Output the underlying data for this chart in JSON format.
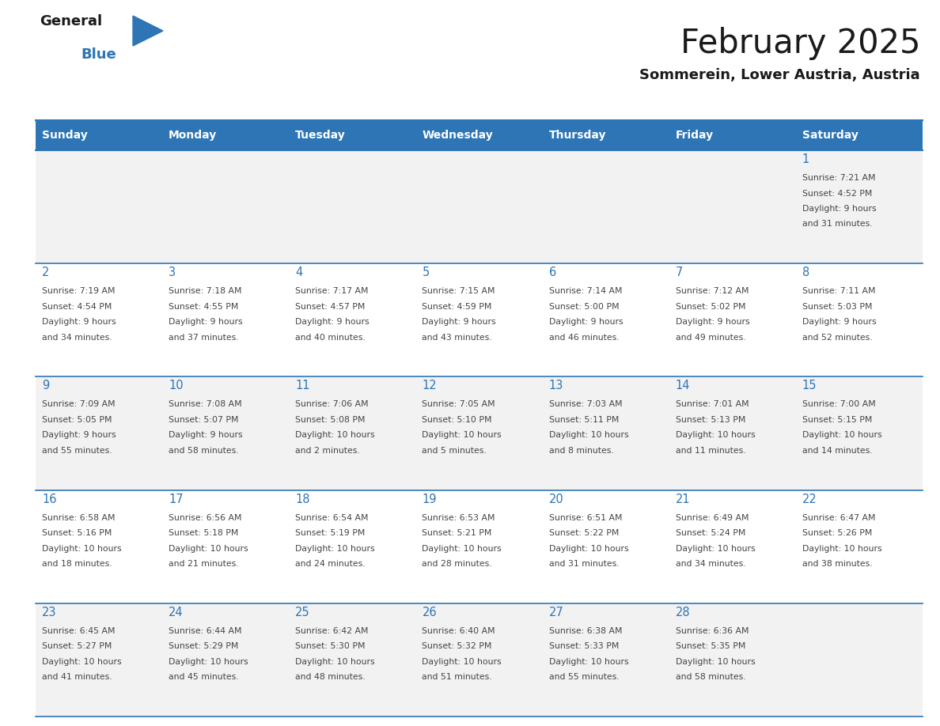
{
  "title": "February 2025",
  "subtitle": "Sommerein, Lower Austria, Austria",
  "days_of_week": [
    "Sunday",
    "Monday",
    "Tuesday",
    "Wednesday",
    "Thursday",
    "Friday",
    "Saturday"
  ],
  "header_bg": "#2e75b6",
  "header_text": "#ffffff",
  "row_bg_odd": "#f2f2f2",
  "row_bg_even": "#ffffff",
  "cell_border": "#2e75b6",
  "day_num_color": "#2e75b6",
  "text_color": "#444444",
  "calendar": [
    [
      null,
      null,
      null,
      null,
      null,
      null,
      {
        "day": 1,
        "sunrise": "7:21 AM",
        "sunset": "4:52 PM",
        "daylight": "9 hours and 31 minutes."
      }
    ],
    [
      {
        "day": 2,
        "sunrise": "7:19 AM",
        "sunset": "4:54 PM",
        "daylight": "9 hours and 34 minutes."
      },
      {
        "day": 3,
        "sunrise": "7:18 AM",
        "sunset": "4:55 PM",
        "daylight": "9 hours and 37 minutes."
      },
      {
        "day": 4,
        "sunrise": "7:17 AM",
        "sunset": "4:57 PM",
        "daylight": "9 hours and 40 minutes."
      },
      {
        "day": 5,
        "sunrise": "7:15 AM",
        "sunset": "4:59 PM",
        "daylight": "9 hours and 43 minutes."
      },
      {
        "day": 6,
        "sunrise": "7:14 AM",
        "sunset": "5:00 PM",
        "daylight": "9 hours and 46 minutes."
      },
      {
        "day": 7,
        "sunrise": "7:12 AM",
        "sunset": "5:02 PM",
        "daylight": "9 hours and 49 minutes."
      },
      {
        "day": 8,
        "sunrise": "7:11 AM",
        "sunset": "5:03 PM",
        "daylight": "9 hours and 52 minutes."
      }
    ],
    [
      {
        "day": 9,
        "sunrise": "7:09 AM",
        "sunset": "5:05 PM",
        "daylight": "9 hours and 55 minutes."
      },
      {
        "day": 10,
        "sunrise": "7:08 AM",
        "sunset": "5:07 PM",
        "daylight": "9 hours and 58 minutes."
      },
      {
        "day": 11,
        "sunrise": "7:06 AM",
        "sunset": "5:08 PM",
        "daylight": "10 hours and 2 minutes."
      },
      {
        "day": 12,
        "sunrise": "7:05 AM",
        "sunset": "5:10 PM",
        "daylight": "10 hours and 5 minutes."
      },
      {
        "day": 13,
        "sunrise": "7:03 AM",
        "sunset": "5:11 PM",
        "daylight": "10 hours and 8 minutes."
      },
      {
        "day": 14,
        "sunrise": "7:01 AM",
        "sunset": "5:13 PM",
        "daylight": "10 hours and 11 minutes."
      },
      {
        "day": 15,
        "sunrise": "7:00 AM",
        "sunset": "5:15 PM",
        "daylight": "10 hours and 14 minutes."
      }
    ],
    [
      {
        "day": 16,
        "sunrise": "6:58 AM",
        "sunset": "5:16 PM",
        "daylight": "10 hours and 18 minutes."
      },
      {
        "day": 17,
        "sunrise": "6:56 AM",
        "sunset": "5:18 PM",
        "daylight": "10 hours and 21 minutes."
      },
      {
        "day": 18,
        "sunrise": "6:54 AM",
        "sunset": "5:19 PM",
        "daylight": "10 hours and 24 minutes."
      },
      {
        "day": 19,
        "sunrise": "6:53 AM",
        "sunset": "5:21 PM",
        "daylight": "10 hours and 28 minutes."
      },
      {
        "day": 20,
        "sunrise": "6:51 AM",
        "sunset": "5:22 PM",
        "daylight": "10 hours and 31 minutes."
      },
      {
        "day": 21,
        "sunrise": "6:49 AM",
        "sunset": "5:24 PM",
        "daylight": "10 hours and 34 minutes."
      },
      {
        "day": 22,
        "sunrise": "6:47 AM",
        "sunset": "5:26 PM",
        "daylight": "10 hours and 38 minutes."
      }
    ],
    [
      {
        "day": 23,
        "sunrise": "6:45 AM",
        "sunset": "5:27 PM",
        "daylight": "10 hours and 41 minutes."
      },
      {
        "day": 24,
        "sunrise": "6:44 AM",
        "sunset": "5:29 PM",
        "daylight": "10 hours and 45 minutes."
      },
      {
        "day": 25,
        "sunrise": "6:42 AM",
        "sunset": "5:30 PM",
        "daylight": "10 hours and 48 minutes."
      },
      {
        "day": 26,
        "sunrise": "6:40 AM",
        "sunset": "5:32 PM",
        "daylight": "10 hours and 51 minutes."
      },
      {
        "day": 27,
        "sunrise": "6:38 AM",
        "sunset": "5:33 PM",
        "daylight": "10 hours and 55 minutes."
      },
      {
        "day": 28,
        "sunrise": "6:36 AM",
        "sunset": "5:35 PM",
        "daylight": "10 hours and 58 minutes."
      },
      null
    ]
  ],
  "logo_general_color": "#1a1a1a",
  "logo_blue_color": "#2e75b6",
  "logo_triangle_color": "#2e75b6",
  "figsize": [
    11.88,
    9.18
  ],
  "dpi": 100
}
